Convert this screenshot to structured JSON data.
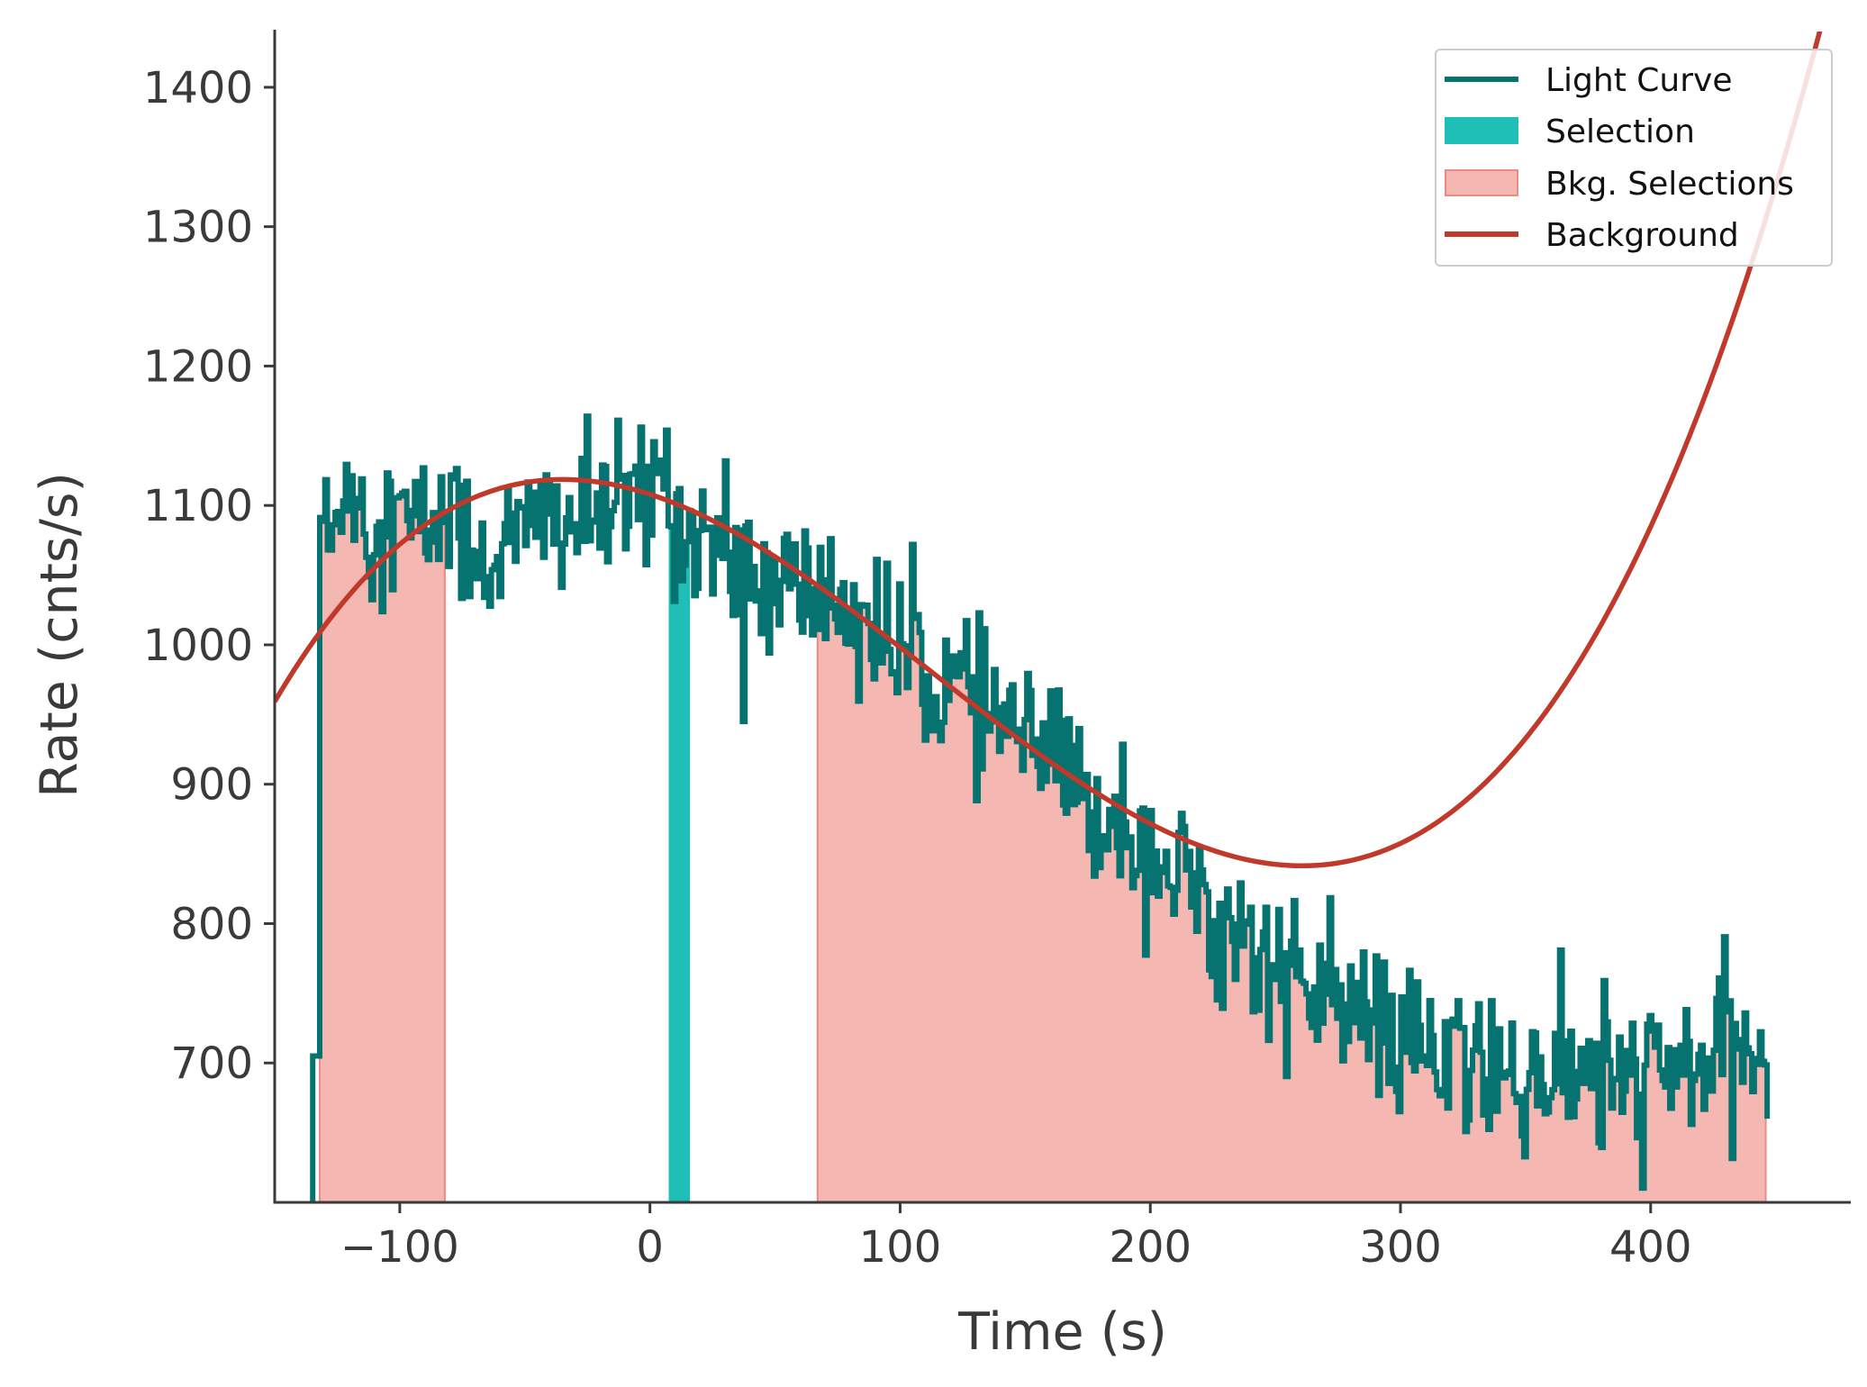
{
  "chart_data": {
    "type": "line",
    "title": "",
    "xlabel": "Time (s)",
    "ylabel": "Rate (cnts/s)",
    "xlim": [
      -150,
      480
    ],
    "ylim": [
      600,
      1440
    ],
    "xticks": [
      -100,
      0,
      100,
      200,
      300,
      400
    ],
    "xtick_labels": [
      "−100",
      "0",
      "100",
      "200",
      "300",
      "400"
    ],
    "yticks": [
      700,
      800,
      900,
      1000,
      1100,
      1200,
      1300,
      1400
    ],
    "ytick_labels": [
      "700",
      "800",
      "900",
      "1000",
      "1100",
      "1200",
      "1300",
      "1400"
    ],
    "grid": false,
    "legend_position": "top-right",
    "colors": {
      "light_curve": "#067370",
      "selection": "#1fbfb8",
      "bkg_selection_fill": "#f5b7b1",
      "bkg_selection_edge": "#ec8b84",
      "background": "#c0392b",
      "axis": "#3a3a3a"
    },
    "legend": [
      {
        "label": "Light Curve",
        "kind": "line",
        "series": "light_curve"
      },
      {
        "label": "Selection",
        "kind": "patch",
        "series": "selection"
      },
      {
        "label": "Bkg. Selections",
        "kind": "patch",
        "series": "bkg_selection"
      },
      {
        "label": "Background",
        "kind": "line",
        "series": "background"
      }
    ],
    "light_curve": {
      "name": "Light Curve",
      "bin_width": 1.024,
      "anchors": [
        [
          -134.8,
          600
        ],
        [
          -134,
          705
        ],
        [
          -132,
          1100
        ],
        [
          -128,
          1060
        ],
        [
          -124,
          1110
        ],
        [
          -120,
          1130
        ],
        [
          -115,
          1090
        ],
        [
          -110,
          1105
        ],
        [
          -105,
          1090
        ],
        [
          -100,
          1095
        ],
        [
          -95,
          1080
        ],
        [
          -90,
          1085
        ],
        [
          -85,
          1090
        ],
        [
          -80,
          1090
        ],
        [
          -75,
          1080
        ],
        [
          -70,
          1070
        ],
        [
          -65,
          1065
        ],
        [
          -60,
          1065
        ],
        [
          -55,
          1075
        ],
        [
          -50,
          1080
        ],
        [
          -45,
          1085
        ],
        [
          -40,
          1095
        ],
        [
          -35,
          1090
        ],
        [
          -30,
          1090
        ],
        [
          -25,
          1090
        ],
        [
          -20,
          1095
        ],
        [
          -15,
          1095
        ],
        [
          -10,
          1095
        ],
        [
          -5,
          1100
        ],
        [
          0,
          1110
        ],
        [
          5,
          1125
        ],
        [
          10,
          1095
        ],
        [
          15,
          1080
        ],
        [
          20,
          1085
        ],
        [
          25,
          1075
        ],
        [
          30,
          1060
        ],
        [
          40,
          1045
        ],
        [
          50,
          1040
        ],
        [
          60,
          1040
        ],
        [
          70,
          1035
        ],
        [
          80,
          1025
        ],
        [
          90,
          1010
        ],
        [
          100,
          995
        ],
        [
          110,
          980
        ],
        [
          120,
          970
        ],
        [
          130,
          960
        ],
        [
          140,
          945
        ],
        [
          150,
          930
        ],
        [
          160,
          915
        ],
        [
          170,
          895
        ],
        [
          180,
          880
        ],
        [
          190,
          870
        ],
        [
          200,
          855
        ],
        [
          210,
          835
        ],
        [
          220,
          815
        ],
        [
          230,
          800
        ],
        [
          240,
          785
        ],
        [
          250,
          770
        ],
        [
          260,
          755
        ],
        [
          270,
          745
        ],
        [
          280,
          735
        ],
        [
          290,
          725
        ],
        [
          300,
          715
        ],
        [
          310,
          705
        ],
        [
          320,
          698
        ],
        [
          330,
          693
        ],
        [
          340,
          690
        ],
        [
          350,
          690
        ],
        [
          360,
          690
        ],
        [
          370,
          688
        ],
        [
          380,
          686
        ],
        [
          390,
          690
        ],
        [
          400,
          690
        ],
        [
          410,
          695
        ],
        [
          420,
          700
        ],
        [
          430,
          705
        ],
        [
          440,
          708
        ],
        [
          446,
          705
        ]
      ],
      "noise_sd": 28,
      "end_value": 660
    },
    "selection": {
      "name": "Selection",
      "ranges": [
        [
          7.5,
          16
        ]
      ]
    },
    "bkg_selections": {
      "name": "Bkg. Selections",
      "ranges": [
        [
          -132,
          -82
        ],
        [
          67,
          446
        ]
      ]
    },
    "background": {
      "name": "Background",
      "type": "polynomial",
      "coefficients": [
        1108,
        -0.5847,
        -0.007284,
        2.15e-05
      ],
      "x_range": [
        -150,
        480
      ]
    }
  }
}
